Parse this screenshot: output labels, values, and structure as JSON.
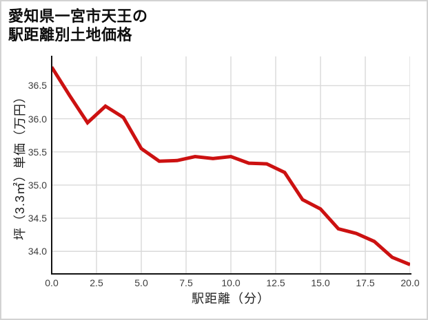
{
  "chart_data": {
    "type": "line",
    "title_lines": [
      "愛知県一宮市天王の",
      "駅距離別土地価格"
    ],
    "xlabel": "駅距離（分）",
    "ylabel": "坪（3.3㎡）単価（万円）",
    "x": [
      0,
      1,
      2,
      3,
      4,
      5,
      6,
      7,
      8,
      9,
      10,
      11,
      12,
      13,
      14,
      15,
      16,
      17,
      18,
      19,
      20
    ],
    "y": [
      36.78,
      36.35,
      35.94,
      36.19,
      36.02,
      35.55,
      35.36,
      35.37,
      35.43,
      35.4,
      35.43,
      35.33,
      35.32,
      35.19,
      34.78,
      34.64,
      34.34,
      34.27,
      34.15,
      33.91,
      33.8
    ],
    "xlim": [
      0,
      20
    ],
    "ylim": [
      33.66,
      36.94
    ],
    "xtick_labels": [
      "0.0",
      "2.5",
      "5.0",
      "7.5",
      "10.0",
      "12.5",
      "15.0",
      "17.5",
      "20.0"
    ],
    "ytick_labels": [
      "34.0",
      "34.5",
      "35.0",
      "35.5",
      "36.0",
      "36.5"
    ],
    "grid": true,
    "legend": false,
    "line_color": "#cc1111"
  },
  "colors": {
    "grid": "#d9d9d9",
    "spine": "#111111",
    "tick_text": "#3c3c3c",
    "label_text": "#1f1f1f",
    "frame_border": "#d2d2d2",
    "background": "#ffffff"
  }
}
